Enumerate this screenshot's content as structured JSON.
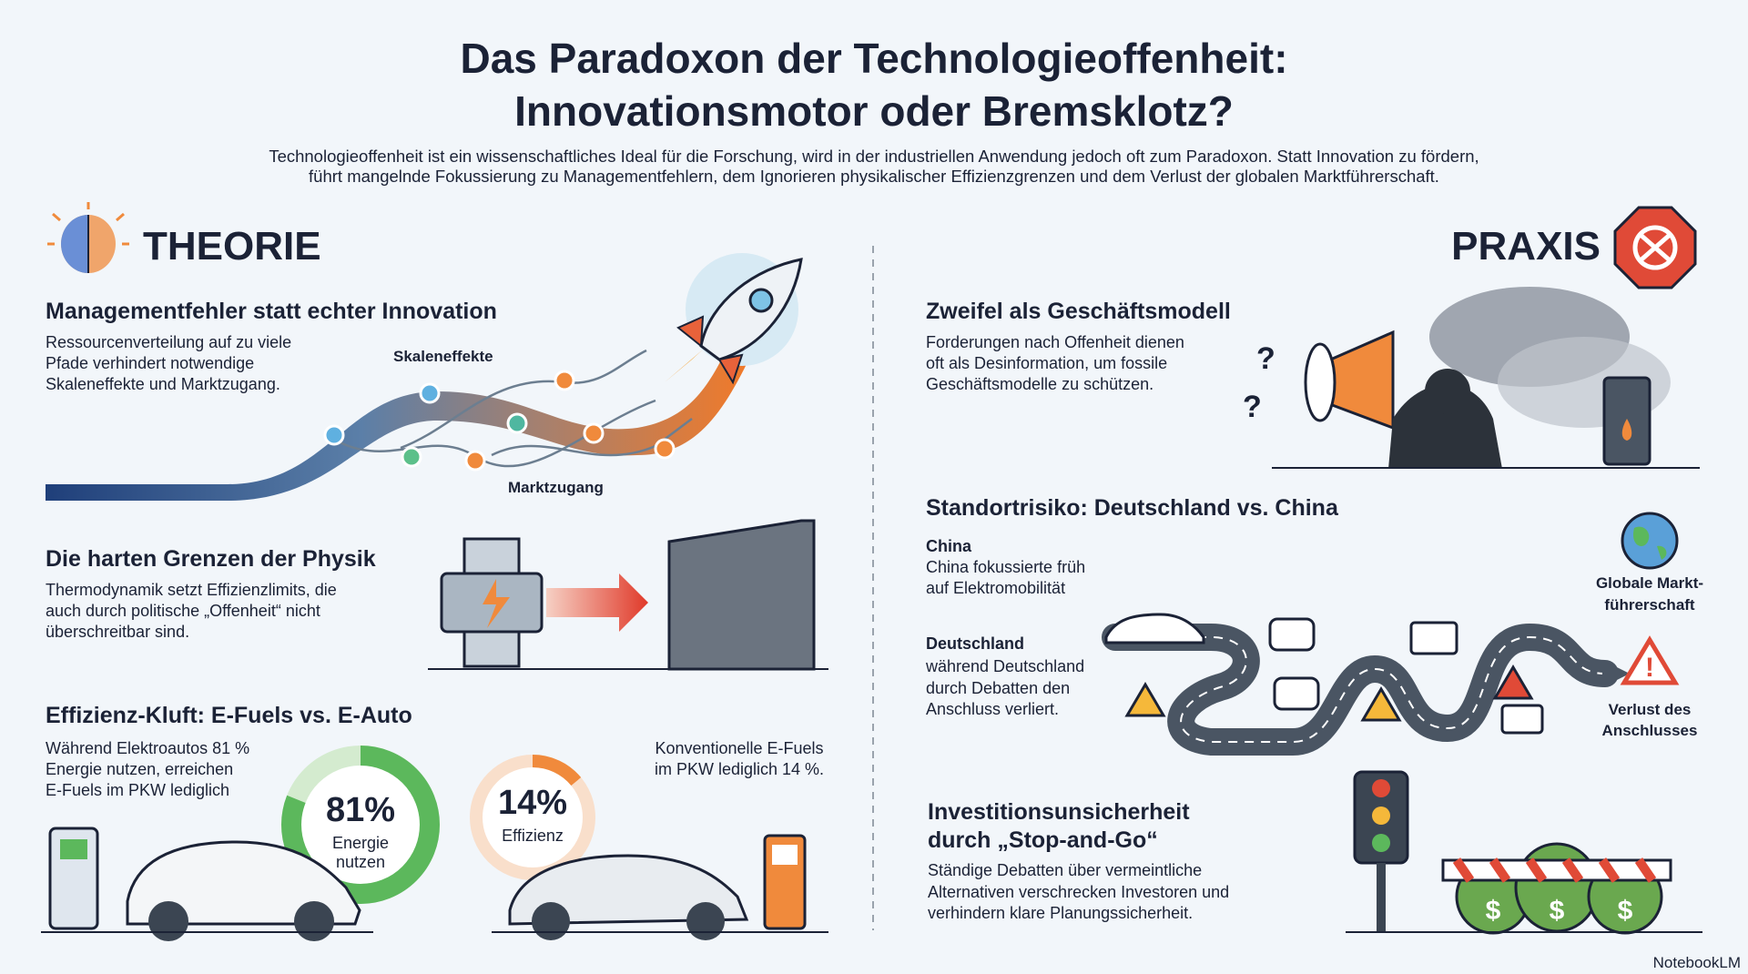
{
  "header": {
    "title": [
      "Das Paradoxon der Technologieoffenheit:",
      "Innovationsmotor oder Bremsklotz?"
    ],
    "subtitle": [
      "Technologieoffenheit ist ein wissenschaftliches Ideal für die Forschung, wird in der industriellen Anwendung jedoch oft zum Paradoxon. Statt Innovation zu fördern,",
      "führt mangelnde Fokussierung zu Managementfehlern, dem Ignorieren physikalischer Effizienzgrenzen und dem Verlust der globalen Marktführerschaft."
    ]
  },
  "theory": {
    "label": "THEORIE",
    "management": {
      "title": "Managementfehler statt echter Innovation",
      "text": [
        "Ressourcenverteilung auf zu viele",
        "Pfade verhindert notwendige",
        "Skaleneffekte und Marktzugang."
      ],
      "labels": [
        "Skaleneffekte",
        "Marktzugang"
      ]
    },
    "physics": {
      "title": "Die harten Grenzen der Physik",
      "text": [
        "Thermodynamik setzt Effizienzlimits, die",
        "auch durch politische „Offenheit“ nicht",
        "überschreitbar sind."
      ]
    },
    "efficiency": {
      "title": "Effizienz-Kluft: E-Fuels vs. E-Auto",
      "text": [
        "Während Elektroautos 81 %",
        "Energie nutzen, erreichen",
        "E-Fuels im PKW lediglich"
      ],
      "note": [
        "Konventionelle E-Fuels",
        "im PKW lediglich 14 %."
      ],
      "donuts": [
        {
          "value": 81,
          "label": "81%",
          "caption": [
            "Energie",
            "nutzen"
          ]
        },
        {
          "value": 14,
          "label": "14%",
          "caption": [
            "Effizienz"
          ]
        }
      ]
    }
  },
  "practice": {
    "label": "PRAXIS",
    "doubt": {
      "title": "Zweifel als Geschäftsmodell",
      "text": [
        "Forderungen nach Offenheit dienen",
        "oft als Desinformation, um fossile",
        "Geschäftsmodelle zu schützen."
      ]
    },
    "location": {
      "title": "Standortrisiko: Deutschland vs. China",
      "china": {
        "name": "China",
        "text": [
          "China fokussierte früh",
          "auf Elektromobilität"
        ]
      },
      "germany": {
        "name": "Deutschland",
        "text": [
          "während Deutschland",
          "durch Debatten den",
          "Anschluss verliert."
        ]
      },
      "goal": [
        "Globale Markt-",
        "führerschaft"
      ],
      "loss": [
        "Verlust des",
        "Anschlusses"
      ]
    },
    "investment": {
      "title": [
        "Investitionsunsicherheit",
        "durch „Stop-and-Go“"
      ],
      "text": [
        "Ständige Debatten über vermeintliche",
        "Alternativen verschrecken Investoren und",
        "verhindern klare Planungssicherheit."
      ]
    }
  },
  "watermark": "NotebookLM"
}
